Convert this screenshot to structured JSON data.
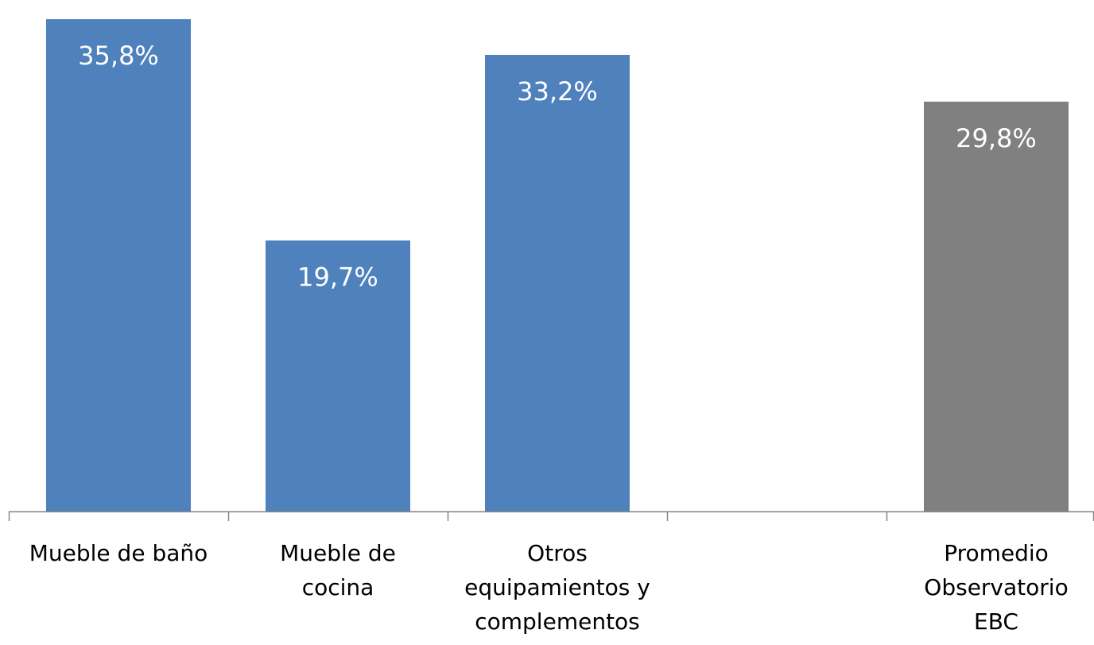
{
  "chart_data": {
    "type": "bar",
    "categories": [
      "Mueble de baño",
      "Mueble de cocina",
      "Otros equipamientos y complementos",
      "",
      "Promedio Observatorio EBC"
    ],
    "category_lines": [
      [
        "Mueble de baño"
      ],
      [
        "Mueble de",
        "cocina"
      ],
      [
        "Otros",
        "equipamientos y",
        "complementos"
      ],
      [],
      [
        "Promedio",
        "Observatorio",
        "EBC"
      ]
    ],
    "values": [
      35.8,
      19.7,
      33.2,
      null,
      29.8
    ],
    "data_labels": [
      "35,8%",
      "19,7%",
      "33,2%",
      "",
      "29,8%"
    ],
    "bar_colors": [
      "#4f81bd",
      "#4f81bd",
      "#4f81bd",
      "",
      "#808080"
    ],
    "label_color": "#ffffff",
    "title": "",
    "xlabel": "",
    "ylabel": "",
    "ylim": [
      0,
      36.5
    ],
    "grid": false,
    "legend": "none"
  }
}
